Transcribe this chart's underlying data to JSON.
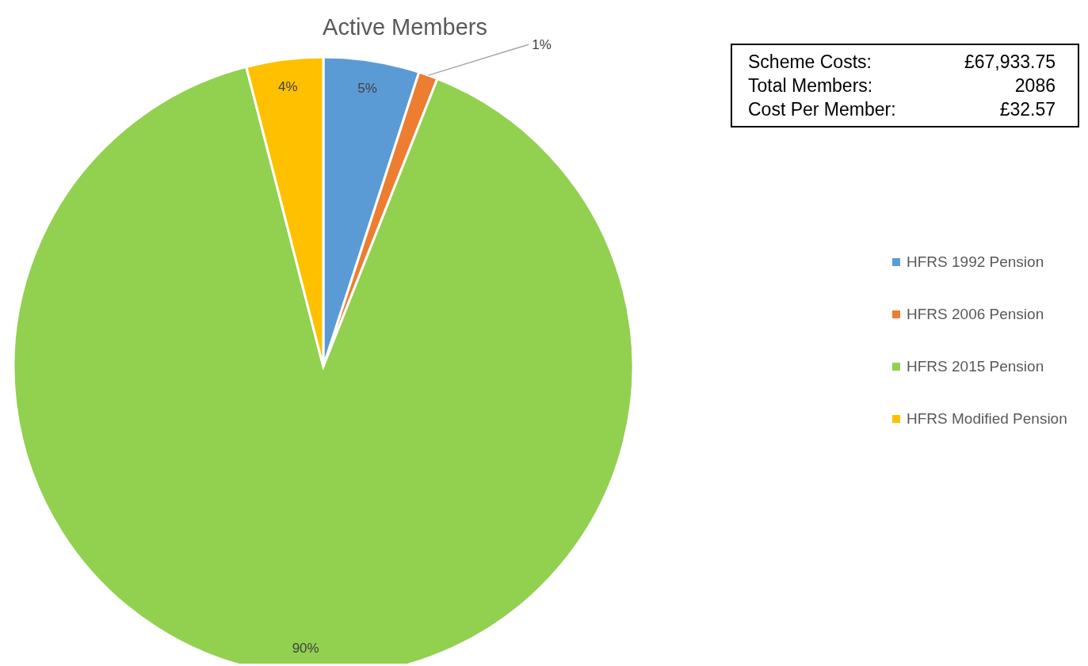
{
  "chart_data": {
    "type": "pie",
    "title": "Active Members",
    "categories": [
      "HFRS 1992 Pension",
      "HFRS 2006 Pension",
      "HFRS 2015 Pension",
      "HFRS Modified Pension"
    ],
    "values": [
      5,
      1,
      90,
      4
    ],
    "colors": [
      "#5b9bd5",
      "#ed7d31",
      "#92d050",
      "#ffc000"
    ],
    "value_labels": [
      "5%",
      "1%",
      "90%",
      "4%"
    ],
    "legend": "right",
    "annotations": [
      "Scheme Costs:",
      "£67,933.75",
      "Total Members:",
      "2086",
      "Cost Per Member:",
      "£32.57"
    ]
  }
}
